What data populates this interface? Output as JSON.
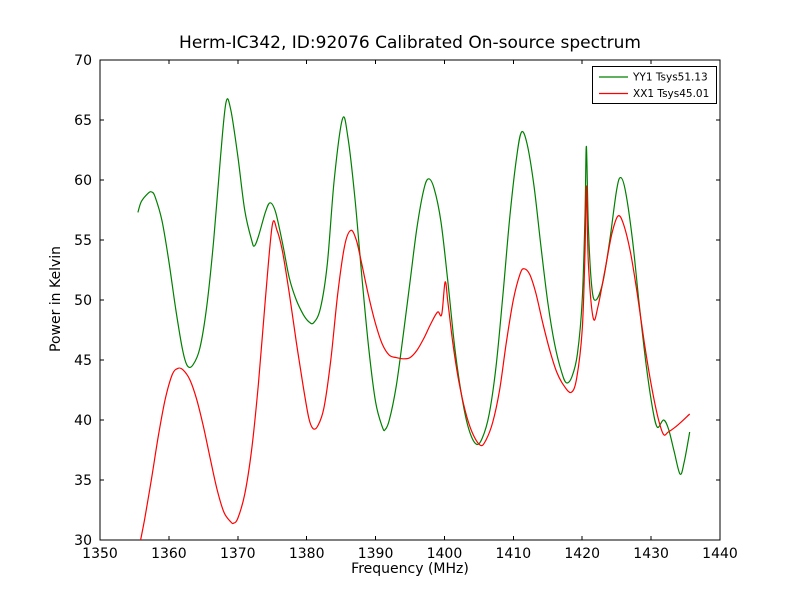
{
  "figure": {
    "title": "Herm-IC342, ID:92076 Calibrated On-source spectrum",
    "xlabel": "Frequency (MHz)",
    "ylabel": "Power in Kelvin",
    "background": "#ffffff",
    "frame_color": "#000000"
  },
  "chart_data": {
    "type": "line",
    "title": "Herm-IC342, ID:92076 Calibrated On-source spectrum",
    "xlabel": "Frequency (MHz)",
    "ylabel": "Power in Kelvin",
    "xlim": [
      1350,
      1440
    ],
    "ylim": [
      30,
      70
    ],
    "xticks": [
      1350,
      1360,
      1370,
      1380,
      1390,
      1400,
      1410,
      1420,
      1430,
      1440
    ],
    "yticks": [
      30,
      35,
      40,
      45,
      50,
      55,
      60,
      65,
      70
    ],
    "grid": false,
    "legend_position": "upper right",
    "series": [
      {
        "name": "YY1 Tsys51.13",
        "color": "#008000",
        "points": [
          [
            1355.5,
            57.3
          ],
          [
            1356,
            58.2
          ],
          [
            1357,
            58.9
          ],
          [
            1357.5,
            59.0
          ],
          [
            1358,
            58.6
          ],
          [
            1359,
            56.6
          ],
          [
            1360,
            53.2
          ],
          [
            1361,
            49.2
          ],
          [
            1362,
            45.8
          ],
          [
            1362.7,
            44.5
          ],
          [
            1363.5,
            44.6
          ],
          [
            1364.5,
            46.0
          ],
          [
            1365.5,
            49.5
          ],
          [
            1366.5,
            55.0
          ],
          [
            1367.5,
            62.0
          ],
          [
            1368.3,
            66.5
          ],
          [
            1369,
            65.8
          ],
          [
            1370,
            62.0
          ],
          [
            1371,
            57.5
          ],
          [
            1372,
            55.0
          ],
          [
            1372.4,
            54.5
          ],
          [
            1373,
            55.3
          ],
          [
            1374,
            57.3
          ],
          [
            1374.7,
            58.1
          ],
          [
            1375.5,
            57.3
          ],
          [
            1376.5,
            54.7
          ],
          [
            1377.5,
            51.8
          ],
          [
            1378.5,
            50.0
          ],
          [
            1379.5,
            48.8
          ],
          [
            1380.3,
            48.2
          ],
          [
            1381,
            48.1
          ],
          [
            1382,
            49.3
          ],
          [
            1383,
            53.0
          ],
          [
            1384,
            60.0
          ],
          [
            1385.2,
            65.1
          ],
          [
            1386,
            63.5
          ],
          [
            1387,
            58.5
          ],
          [
            1388,
            52.0
          ],
          [
            1389,
            46.0
          ],
          [
            1390,
            41.5
          ],
          [
            1391,
            39.4
          ],
          [
            1391.4,
            39.2
          ],
          [
            1392,
            40.0
          ],
          [
            1393,
            42.8
          ],
          [
            1394,
            47.0
          ],
          [
            1395,
            51.5
          ],
          [
            1396,
            56.0
          ],
          [
            1397,
            59.2
          ],
          [
            1397.7,
            60.1
          ],
          [
            1398.5,
            59.3
          ],
          [
            1399.5,
            56.5
          ],
          [
            1400.5,
            51.5
          ],
          [
            1401.5,
            46.0
          ],
          [
            1402.5,
            42.0
          ],
          [
            1403.5,
            39.3
          ],
          [
            1404.6,
            38.0
          ],
          [
            1405.5,
            38.5
          ],
          [
            1406.5,
            40.5
          ],
          [
            1407.5,
            44.5
          ],
          [
            1408.5,
            50.5
          ],
          [
            1409.5,
            57.0
          ],
          [
            1410.5,
            62.0
          ],
          [
            1411.2,
            64.0
          ],
          [
            1412,
            63.0
          ],
          [
            1413,
            59.5
          ],
          [
            1414,
            54.5
          ],
          [
            1415,
            49.8
          ],
          [
            1416,
            46.3
          ],
          [
            1417,
            44.0
          ],
          [
            1417.7,
            43.1
          ],
          [
            1418.5,
            43.6
          ],
          [
            1419.3,
            45.5
          ],
          [
            1420,
            50.0
          ],
          [
            1420.4,
            57.0
          ],
          [
            1420.6,
            62.8
          ],
          [
            1420.9,
            56.0
          ],
          [
            1421.4,
            51.0
          ],
          [
            1422,
            50.0
          ],
          [
            1423,
            51.5
          ],
          [
            1424,
            55.0
          ],
          [
            1425,
            59.2
          ],
          [
            1425.6,
            60.2
          ],
          [
            1426.3,
            59.0
          ],
          [
            1427.3,
            55.0
          ],
          [
            1428.3,
            49.5
          ],
          [
            1429.3,
            44.5
          ],
          [
            1430.2,
            41.0
          ],
          [
            1430.9,
            39.4
          ],
          [
            1431.8,
            40.0
          ],
          [
            1432.5,
            39.3
          ],
          [
            1433.3,
            37.5
          ],
          [
            1434.2,
            35.5
          ],
          [
            1434.8,
            36.5
          ],
          [
            1435.6,
            39.0
          ]
        ]
      },
      {
        "name": "XX1 Tsys45.01",
        "color": "#ff0000",
        "points": [
          [
            1355.9,
            30.0
          ],
          [
            1356.5,
            31.8
          ],
          [
            1357.5,
            35.2
          ],
          [
            1358.5,
            38.8
          ],
          [
            1359.5,
            41.8
          ],
          [
            1360.5,
            43.8
          ],
          [
            1361.3,
            44.3
          ],
          [
            1362,
            44.2
          ],
          [
            1363,
            43.4
          ],
          [
            1364,
            41.8
          ],
          [
            1365,
            39.5
          ],
          [
            1366,
            36.8
          ],
          [
            1367,
            34.2
          ],
          [
            1368,
            32.3
          ],
          [
            1369,
            31.5
          ],
          [
            1369.4,
            31.4
          ],
          [
            1370,
            31.8
          ],
          [
            1371,
            33.8
          ],
          [
            1372,
            37.5
          ],
          [
            1373,
            43.0
          ],
          [
            1374,
            50.0
          ],
          [
            1375,
            56.2
          ],
          [
            1375.7,
            55.8
          ],
          [
            1376.5,
            54.0
          ],
          [
            1377.5,
            50.5
          ],
          [
            1378.5,
            46.5
          ],
          [
            1379.5,
            42.8
          ],
          [
            1380.3,
            40.2
          ],
          [
            1380.9,
            39.3
          ],
          [
            1381.6,
            39.5
          ],
          [
            1382.5,
            41.0
          ],
          [
            1383.5,
            45.0
          ],
          [
            1384.5,
            50.5
          ],
          [
            1385.5,
            54.5
          ],
          [
            1386.4,
            55.8
          ],
          [
            1387.2,
            55.0
          ],
          [
            1388,
            53.0
          ],
          [
            1389,
            50.3
          ],
          [
            1390,
            48.0
          ],
          [
            1391,
            46.3
          ],
          [
            1392,
            45.4
          ],
          [
            1393,
            45.2
          ],
          [
            1394,
            45.1
          ],
          [
            1395,
            45.2
          ],
          [
            1396,
            45.8
          ],
          [
            1397,
            46.8
          ],
          [
            1398,
            48.0
          ],
          [
            1399,
            49.0
          ],
          [
            1399.6,
            48.8
          ],
          [
            1400.1,
            51.5
          ],
          [
            1400.5,
            49.8
          ],
          [
            1401.2,
            46.5
          ],
          [
            1402,
            43.5
          ],
          [
            1403,
            40.8
          ],
          [
            1404,
            39.0
          ],
          [
            1405.2,
            37.9
          ],
          [
            1406,
            38.3
          ],
          [
            1407,
            39.8
          ],
          [
            1408,
            42.5
          ],
          [
            1409,
            46.5
          ],
          [
            1410,
            50.0
          ],
          [
            1411,
            52.2
          ],
          [
            1411.6,
            52.6
          ],
          [
            1412.4,
            52.1
          ],
          [
            1413.3,
            50.5
          ],
          [
            1414.3,
            48.0
          ],
          [
            1415.3,
            45.8
          ],
          [
            1416.3,
            44.0
          ],
          [
            1417.3,
            42.9
          ],
          [
            1418.4,
            42.3
          ],
          [
            1419.2,
            43.5
          ],
          [
            1420,
            47.5
          ],
          [
            1420.4,
            54.0
          ],
          [
            1420.6,
            59.5
          ],
          [
            1420.9,
            53.0
          ],
          [
            1421.6,
            48.5
          ],
          [
            1422.3,
            49.5
          ],
          [
            1423.3,
            52.5
          ],
          [
            1424.3,
            55.5
          ],
          [
            1425.2,
            57.0
          ],
          [
            1426,
            56.3
          ],
          [
            1427,
            54.0
          ],
          [
            1428,
            50.5
          ],
          [
            1429,
            46.5
          ],
          [
            1430,
            43.0
          ],
          [
            1431,
            40.2
          ],
          [
            1431.8,
            38.8
          ],
          [
            1432.5,
            39.0
          ],
          [
            1433.5,
            39.4
          ],
          [
            1434.5,
            39.9
          ],
          [
            1435.6,
            40.5
          ]
        ]
      }
    ]
  }
}
